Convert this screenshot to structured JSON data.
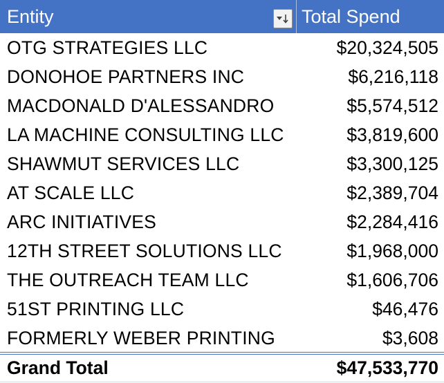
{
  "table": {
    "header": {
      "entity_label": "Entity",
      "spend_label": "Total Spend",
      "filter_icon": "sort-descending-filter-icon"
    },
    "rows": [
      {
        "entity": "OTG STRATEGIES LLC",
        "spend": "$20,324,505"
      },
      {
        "entity": "DONOHOE PARTNERS INC",
        "spend": "$6,216,118"
      },
      {
        "entity": "MACDONALD D'ALESSANDRO",
        "spend": "$5,574,512"
      },
      {
        "entity": "LA MACHINE CONSULTING LLC",
        "spend": "$3,819,600"
      },
      {
        "entity": "SHAWMUT SERVICES LLC",
        "spend": "$3,300,125"
      },
      {
        "entity": "AT SCALE LLC",
        "spend": "$2,389,704"
      },
      {
        "entity": "ARC INITIATIVES",
        "spend": "$2,284,416"
      },
      {
        "entity": "12TH STREET SOLUTIONS LLC",
        "spend": "$1,968,000"
      },
      {
        "entity": "THE OUTREACH TEAM LLC",
        "spend": "$1,606,706"
      },
      {
        "entity": "51ST PRINTING LLC",
        "spend": "$46,476"
      },
      {
        "entity": "FORMERLY WEBER PRINTING",
        "spend": "$3,608"
      }
    ],
    "total": {
      "label": "Grand Total",
      "spend": "$47,533,770"
    },
    "colors": {
      "header_bg": "#4472c4",
      "header_text": "#ffffff",
      "border": "#4472c4"
    }
  }
}
